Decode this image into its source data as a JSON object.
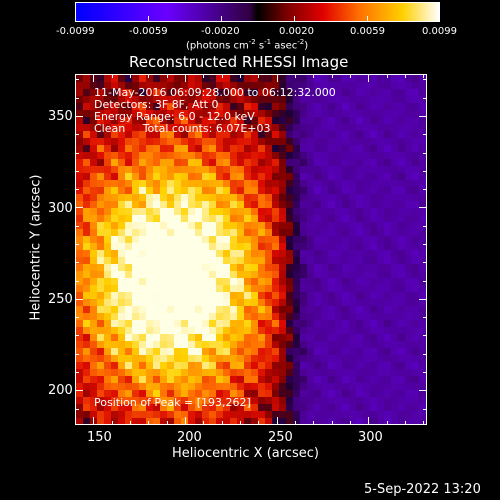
{
  "colorbar": {
    "ticks": [
      "-0.0099",
      "-0.0059",
      "-0.0020",
      "0.0020",
      "0.0059",
      "0.0099"
    ],
    "units_main": "(photons cm",
    "units_sup1": "-2",
    "units_mid": " s",
    "units_sup2": "-1",
    "units_mid2": " asec",
    "units_sup3": "-2",
    "units_end": ")"
  },
  "title": "Reconstructed RHESSI Image",
  "annotations": {
    "line1": "11-May-2016 06:09:28.000 to 06:12:32.000",
    "line2": "Detectors: 3F 8F, Att 0",
    "line3": "Energy Range: 6.0 - 12.0 keV",
    "line4": "Clean     Total counts: 6.07E+03",
    "peak": "Position of Peak = [193,262]"
  },
  "axes": {
    "xlabel": "Heliocentric X (arcsec)",
    "ylabel": "Heliocentric Y (arcsec)",
    "xticks": [
      150,
      200,
      250,
      300
    ],
    "yticks": [
      200,
      250,
      300,
      350
    ],
    "xlim": [
      140,
      332
    ],
    "ylim": [
      181,
      373
    ]
  },
  "footer": {
    "date": "5-Sep-2022 13:20"
  },
  "image": {
    "type": "heatmap",
    "peak": [
      193,
      262
    ],
    "colormap": "blue-purple-red-yellow-white"
  }
}
